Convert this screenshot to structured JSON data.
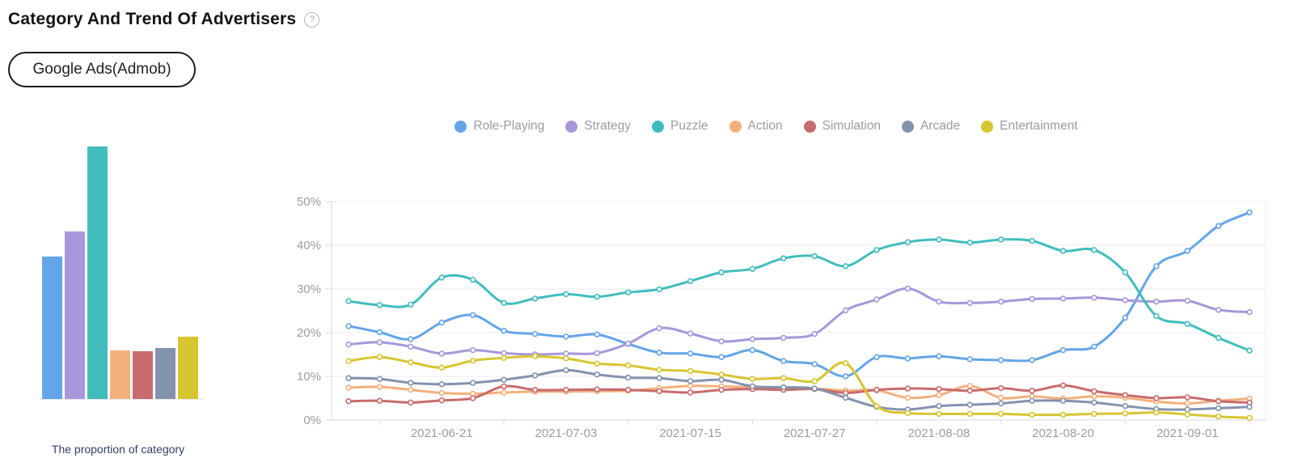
{
  "header": {
    "title": "Category And Trend Of Advertisers",
    "help_icon": "?"
  },
  "filters": {
    "platform_tag": "Google Ads(Admob)"
  },
  "palette": {
    "role_playing": "#63a5e7",
    "strategy": "#a897da",
    "puzzle": "#41bcbd",
    "action": "#f3b07b",
    "simulation": "#c76b6e",
    "arcade": "#8392ad",
    "entertainment": "#d7c531",
    "axis_text": "#999ca3",
    "grid_line": "#ebebf0",
    "axis_line": "#d8d8e2",
    "caption_text": "#2e3e62"
  },
  "chart_data": [
    {
      "type": "bar",
      "title": "The proportion of category",
      "categories": [
        "Role-Playing",
        "Strategy",
        "Puzzle",
        "Action",
        "Simulation",
        "Arcade",
        "Entertainment"
      ],
      "values": [
        17.7,
        20.8,
        31.3,
        6.1,
        6.0,
        6.4,
        7.8
      ],
      "colors": [
        "#63a5e7",
        "#a897da",
        "#41bcbd",
        "#f3b07b",
        "#c76b6e",
        "#8392ad",
        "#d7c531"
      ],
      "ylim": [
        0,
        31.3
      ],
      "axes_visible": false,
      "legend": false
    },
    {
      "type": "line",
      "smooth": true,
      "markers": "hollow-circle",
      "grid": true,
      "legend_position": "top",
      "ylim": [
        0,
        50
      ],
      "y_tick_labels": [
        "0%",
        "10%",
        "20%",
        "30%",
        "40%",
        "50%"
      ],
      "x_tick_labels": [
        "2021-06-21",
        "2021-07-03",
        "2021-07-15",
        "2021-07-27",
        "2021-08-08",
        "2021-08-20",
        "2021-09-01"
      ],
      "x": [
        "2021-06-12",
        "2021-06-15",
        "2021-06-18",
        "2021-06-21",
        "2021-06-24",
        "2021-06-27",
        "2021-06-30",
        "2021-07-03",
        "2021-07-06",
        "2021-07-09",
        "2021-07-12",
        "2021-07-15",
        "2021-07-18",
        "2021-07-21",
        "2021-07-24",
        "2021-07-27",
        "2021-07-30",
        "2021-08-02",
        "2021-08-05",
        "2021-08-08",
        "2021-08-11",
        "2021-08-14",
        "2021-08-17",
        "2021-08-20",
        "2021-08-23",
        "2021-08-26",
        "2021-08-29",
        "2021-09-01",
        "2021-09-04",
        "2021-09-07"
      ],
      "series": [
        {
          "name": "Role-Playing",
          "color": "#63a5e7",
          "values": [
            21.5,
            20.1,
            18.5,
            22.3,
            24.0,
            20.4,
            19.7,
            19.1,
            19.6,
            17.4,
            15.4,
            15.2,
            14.4,
            16.0,
            13.5,
            12.8,
            10.0,
            14.4,
            14.1,
            14.6,
            13.9,
            13.7,
            13.7,
            16.0,
            16.8,
            23.4,
            35.2,
            38.7,
            44.4,
            47.5
          ]
        },
        {
          "name": "Strategy",
          "color": "#a897da",
          "values": [
            17.3,
            17.8,
            16.8,
            15.2,
            16.0,
            15.3,
            15.0,
            15.2,
            15.3,
            17.5,
            21.0,
            19.8,
            18.0,
            18.5,
            18.8,
            19.7,
            25.1,
            27.6,
            30.1,
            27.1,
            26.8,
            27.1,
            27.7,
            27.8,
            28.0,
            27.4,
            27.1,
            27.3,
            25.2,
            24.7
          ]
        },
        {
          "name": "Puzzle",
          "color": "#41bcbd",
          "values": [
            27.2,
            26.3,
            26.4,
            32.6,
            32.1,
            26.8,
            27.8,
            28.8,
            28.2,
            29.2,
            29.9,
            31.8,
            33.8,
            34.6,
            37.0,
            37.5,
            35.2,
            38.9,
            40.7,
            41.3,
            40.6,
            41.3,
            41.0,
            38.7,
            38.9,
            33.8,
            23.8,
            22.0,
            18.8,
            15.9
          ]
        },
        {
          "name": "Action",
          "color": "#f3b07b",
          "values": [
            7.4,
            7.6,
            6.9,
            6.2,
            6.0,
            6.3,
            6.5,
            6.5,
            6.6,
            6.7,
            7.3,
            7.8,
            7.7,
            7.5,
            7.2,
            7.2,
            6.7,
            6.8,
            5.1,
            5.7,
            7.8,
            5.1,
            5.4,
            4.9,
            5.4,
            5.1,
            4.2,
            3.8,
            4.4,
            4.9
          ]
        },
        {
          "name": "Simulation",
          "color": "#c76b6e",
          "values": [
            4.3,
            4.4,
            4.0,
            4.5,
            5.0,
            7.7,
            6.9,
            6.9,
            7.0,
            6.9,
            6.6,
            6.3,
            6.9,
            7.1,
            6.9,
            7.1,
            6.2,
            6.9,
            7.2,
            7.1,
            6.7,
            7.3,
            6.7,
            7.9,
            6.6,
            5.7,
            5.0,
            5.2,
            4.3,
            4.0
          ]
        },
        {
          "name": "Arcade",
          "color": "#8392ad",
          "values": [
            9.6,
            9.4,
            8.5,
            8.2,
            8.5,
            9.2,
            10.2,
            11.4,
            10.4,
            9.7,
            9.6,
            8.9,
            9.2,
            7.7,
            7.5,
            7.2,
            5.1,
            3.0,
            2.4,
            3.2,
            3.5,
            3.8,
            4.4,
            4.4,
            4.0,
            3.2,
            2.5,
            2.4,
            2.7,
            3.0
          ]
        },
        {
          "name": "Entertainment",
          "color": "#d7c531",
          "values": [
            13.5,
            14.4,
            13.2,
            12.0,
            13.6,
            14.2,
            14.6,
            14.1,
            12.9,
            12.5,
            11.5,
            11.2,
            10.4,
            9.4,
            9.6,
            8.9,
            13.0,
            3.2,
            1.6,
            1.4,
            1.4,
            1.4,
            1.2,
            1.2,
            1.4,
            1.5,
            1.7,
            1.3,
            0.8,
            0.5
          ]
        }
      ]
    }
  ]
}
